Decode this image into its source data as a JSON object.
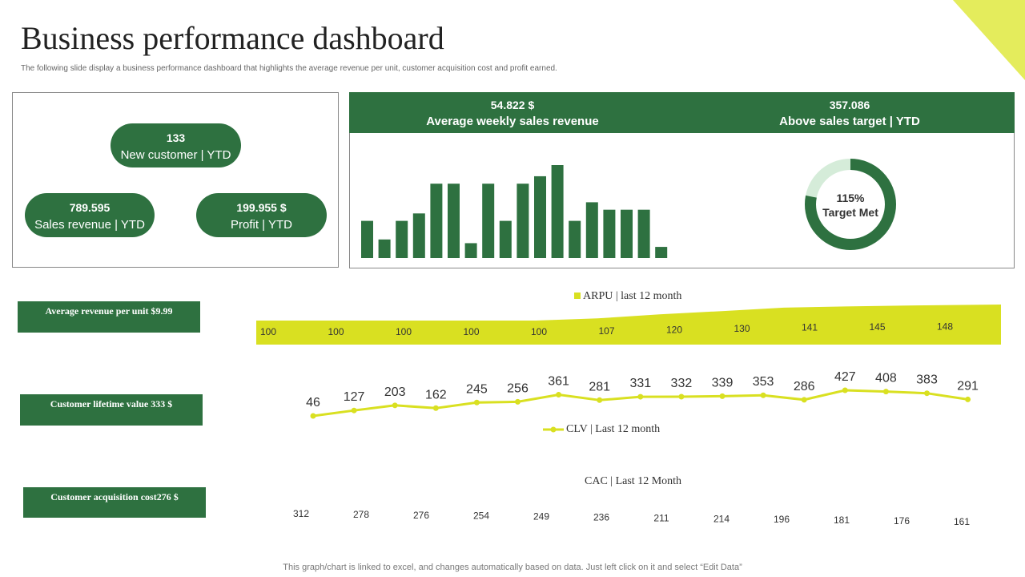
{
  "header": {
    "title": "Business performance dashboard",
    "subtitle": "The following slide display a business performance dashboard that highlights the average revenue per unit, customer acquisition cost and profit earned."
  },
  "kpis": {
    "new_customer": {
      "value": "133",
      "label": "New customer | YTD"
    },
    "sales_revenue": {
      "value": "789.595",
      "label": "Sales revenue | YTD"
    },
    "profit": {
      "value": "199.955 $",
      "label": "Profit | YTD"
    }
  },
  "revenue_panel": {
    "weekly": {
      "value": "54.822 $",
      "label": "Average weekly sales revenue"
    },
    "target": {
      "value": "357.086",
      "label": "Above sales target | YTD"
    }
  },
  "donut": {
    "percent_text": "115%",
    "caption": "Target Met",
    "ratio_shown": 0.78
  },
  "side_labels": {
    "arpu": "Average revenue per unit $9.99",
    "clv": "Customer lifetime value 333 $",
    "cac": "Customer acquisition cost276 $"
  },
  "footer": "This graph/chart is linked to excel, and changes automatically based on data. Just left click on it and select “Edit Data”",
  "colors": {
    "green": "#2e7140",
    "lime": "#d9e021",
    "light_green": "#d5ecd9"
  },
  "chart_data": [
    {
      "type": "bar",
      "title": "Average weekly sales revenue",
      "values": [
        2,
        1,
        2,
        2.4,
        4,
        4,
        0.8,
        4,
        2,
        4,
        4.4,
        5,
        2,
        3,
        2.6,
        2.6,
        2.6,
        0.6
      ],
      "ylim": [
        0,
        5
      ]
    },
    {
      "type": "area",
      "legend": "ARPU | last 12 month",
      "values": [
        100,
        100,
        100,
        100,
        100,
        107,
        120,
        130,
        141,
        145,
        148,
        151
      ]
    },
    {
      "type": "line",
      "legend": "CLV | Last 12 month",
      "values": [
        46,
        127,
        203,
        162,
        245,
        256,
        361,
        281,
        331,
        332,
        339,
        353,
        286,
        427,
        408,
        383,
        291
      ]
    },
    {
      "type": "table",
      "title": "CAC | Last 12 Month",
      "values": [
        312,
        278,
        276,
        254,
        249,
        236,
        211,
        214,
        196,
        181,
        176,
        161
      ]
    }
  ]
}
